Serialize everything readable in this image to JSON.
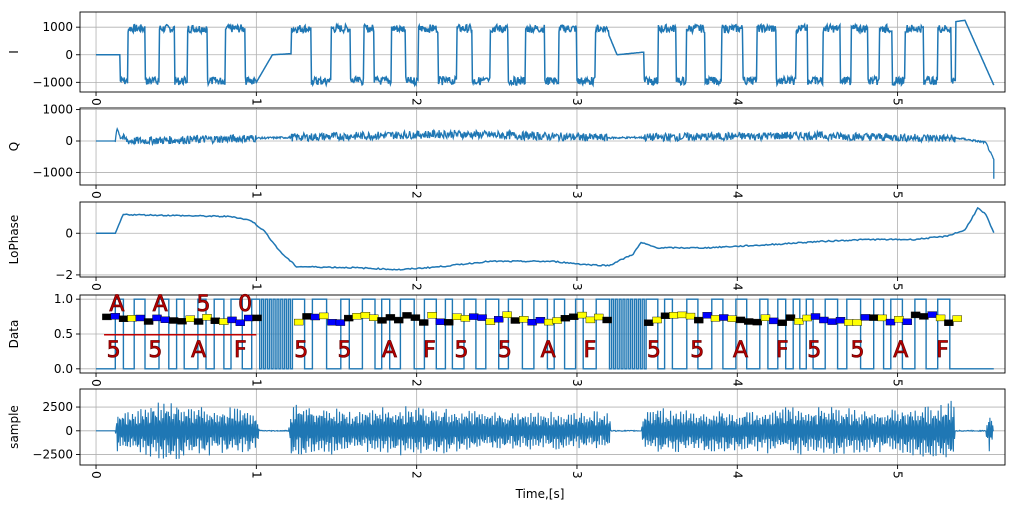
{
  "chart_data": {
    "type": "line",
    "figure_type": "stacked-subplots",
    "shared_x_axis": {
      "label": "Time,[s]",
      "range": [
        -0.1,
        5.67
      ],
      "ticks": [
        "0",
        "1",
        "2",
        "3",
        "4",
        "5"
      ],
      "tick_rotation": "-90 degrees"
    },
    "grid": true,
    "line_color": "#1f77b4",
    "panels": [
      {
        "id": "i",
        "ylabel": "I",
        "ylim": [
          -1350,
          1550
        ],
        "yticks": [
          "1000",
          "0",
          "−1000"
        ],
        "ytick_values": [
          1000,
          0,
          -1000
        ],
        "description": "square-wave bursts switching between about +1000 and -1000",
        "anchor_points": [
          [
            0,
            0
          ],
          [
            0.15,
            0
          ],
          [
            0.17,
            -800
          ],
          [
            0.2,
            1100
          ],
          [
            1.0,
            -1000
          ],
          [
            1.05,
            -1000
          ],
          [
            1.1,
            0
          ],
          [
            1.2,
            0
          ],
          [
            1.25,
            900
          ],
          [
            5.35,
            1100
          ],
          [
            5.4,
            1250
          ],
          [
            5.6,
            -1100
          ]
        ]
      },
      {
        "id": "q",
        "ylabel": "Q",
        "ylim": [
          -1400,
          1050
        ],
        "yticks": [
          "1000",
          "0",
          "−1000"
        ],
        "ytick_values": [
          1000,
          0,
          -1000
        ],
        "description": "noise around 0 with a spike near 850 at t=0.13 and a drop to about -1200 at the end",
        "anchor_points": [
          [
            0,
            0
          ],
          [
            0.12,
            0
          ],
          [
            0.13,
            850
          ],
          [
            0.15,
            300
          ],
          [
            0.2,
            0
          ],
          [
            2.2,
            450
          ],
          [
            3.2,
            200
          ],
          [
            4.4,
            350
          ],
          [
            5.4,
            150
          ],
          [
            5.55,
            -100
          ],
          [
            5.6,
            -1200
          ]
        ]
      },
      {
        "id": "lophase",
        "ylabel": "LoPhase",
        "ylim": [
          -2.1,
          1.5
        ],
        "yticks": [
          "0",
          "−2"
        ],
        "ytick_values": [
          0,
          -2
        ],
        "description": "slowly varying phase",
        "points": [
          [
            0,
            0
          ],
          [
            0.12,
            0
          ],
          [
            0.17,
            0.9
          ],
          [
            0.5,
            0.85
          ],
          [
            0.85,
            0.8
          ],
          [
            0.97,
            0.6
          ],
          [
            1.05,
            0.1
          ],
          [
            1.15,
            -0.9
          ],
          [
            1.25,
            -1.6
          ],
          [
            1.6,
            -1.65
          ],
          [
            1.9,
            -1.75
          ],
          [
            2.15,
            -1.6
          ],
          [
            2.45,
            -1.35
          ],
          [
            2.85,
            -1.35
          ],
          [
            3.05,
            -1.5
          ],
          [
            3.2,
            -1.55
          ],
          [
            3.35,
            -1.0
          ],
          [
            3.4,
            -0.45
          ],
          [
            3.5,
            -0.7
          ],
          [
            3.8,
            -0.7
          ],
          [
            4.2,
            -0.55
          ],
          [
            4.5,
            -0.4
          ],
          [
            4.8,
            -0.3
          ],
          [
            5.1,
            -0.3
          ],
          [
            5.3,
            -0.15
          ],
          [
            5.42,
            0.15
          ],
          [
            5.5,
            1.2
          ],
          [
            5.55,
            0.9
          ],
          [
            5.6,
            0
          ]
        ]
      },
      {
        "id": "data",
        "ylabel": "Data",
        "ylim": [
          -0.06,
          1.06
        ],
        "yticks": [
          "1.0",
          "0.5",
          "0.0"
        ],
        "ytick_values": [
          1.0,
          0.5,
          0.0
        ],
        "description": "binary data signal with decoded byte annotations",
        "top_labels": [
          "A",
          "A",
          "5",
          "0"
        ],
        "bottom_labels": [
          "5",
          "5",
          "A",
          "F",
          "5",
          "5",
          "A",
          "F",
          "5",
          "5",
          "A",
          "F",
          "5",
          "5",
          "A",
          "F",
          "5",
          "5",
          "A",
          "F"
        ],
        "annotation_color": "#c00000",
        "marker_colors": [
          "#000000",
          "#0000ff",
          "#ffff00"
        ]
      },
      {
        "id": "sample",
        "ylabel": "sample",
        "ylim": [
          -3600,
          4400
        ],
        "yticks": [
          "2500",
          "0",
          "−2500"
        ],
        "ytick_values": [
          2500,
          0,
          -2500
        ],
        "description": "oscillating envelope bursts",
        "envelope_points": [
          [
            0,
            0
          ],
          [
            0.12,
            0
          ],
          [
            0.13,
            2400
          ],
          [
            0.2,
            2000
          ],
          [
            0.4,
            3500
          ],
          [
            0.6,
            2900
          ],
          [
            0.95,
            2500
          ],
          [
            1.0,
            1800
          ],
          [
            1.02,
            400
          ],
          [
            1.2,
            300
          ],
          [
            1.22,
            3000
          ],
          [
            1.6,
            2300
          ],
          [
            2.0,
            2700
          ],
          [
            2.5,
            2200
          ],
          [
            3.0,
            2000
          ],
          [
            3.2,
            2200
          ],
          [
            3.21,
            400
          ],
          [
            3.4,
            300
          ],
          [
            3.42,
            2500
          ],
          [
            4.0,
            2200
          ],
          [
            4.5,
            2700
          ],
          [
            4.9,
            2300
          ],
          [
            5.35,
            3200
          ],
          [
            5.36,
            400
          ],
          [
            5.55,
            300
          ],
          [
            5.58,
            3000
          ],
          [
            5.6,
            0
          ]
        ]
      }
    ]
  }
}
